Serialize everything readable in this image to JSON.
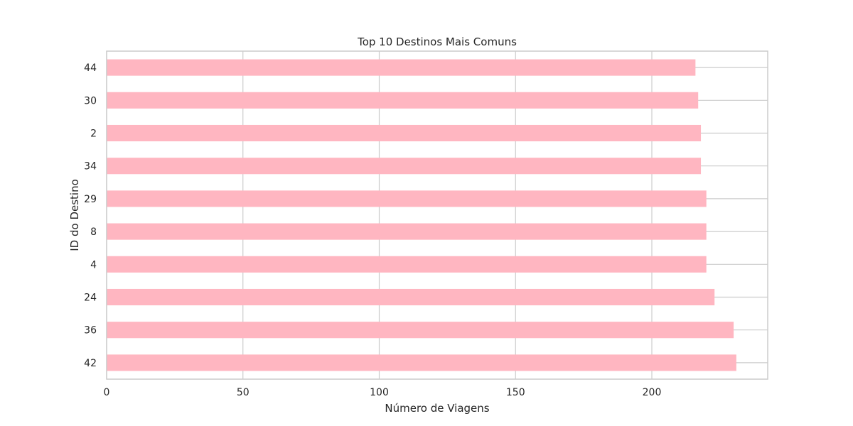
{
  "chart_data": {
    "type": "bar",
    "orientation": "horizontal",
    "title": "Top 10 Destinos Mais Comuns",
    "xlabel": "Número de Viagens",
    "ylabel": "ID do Destino",
    "categories": [
      "42",
      "36",
      "24",
      "4",
      "8",
      "29",
      "34",
      "2",
      "30",
      "44"
    ],
    "values": [
      231,
      230,
      223,
      220,
      220,
      220,
      218,
      218,
      217,
      216
    ],
    "xlim": [
      0,
      242.5
    ],
    "xticks": [
      0,
      50,
      100,
      150,
      200
    ],
    "grid": true,
    "bar_color": "#ffb6c1"
  }
}
